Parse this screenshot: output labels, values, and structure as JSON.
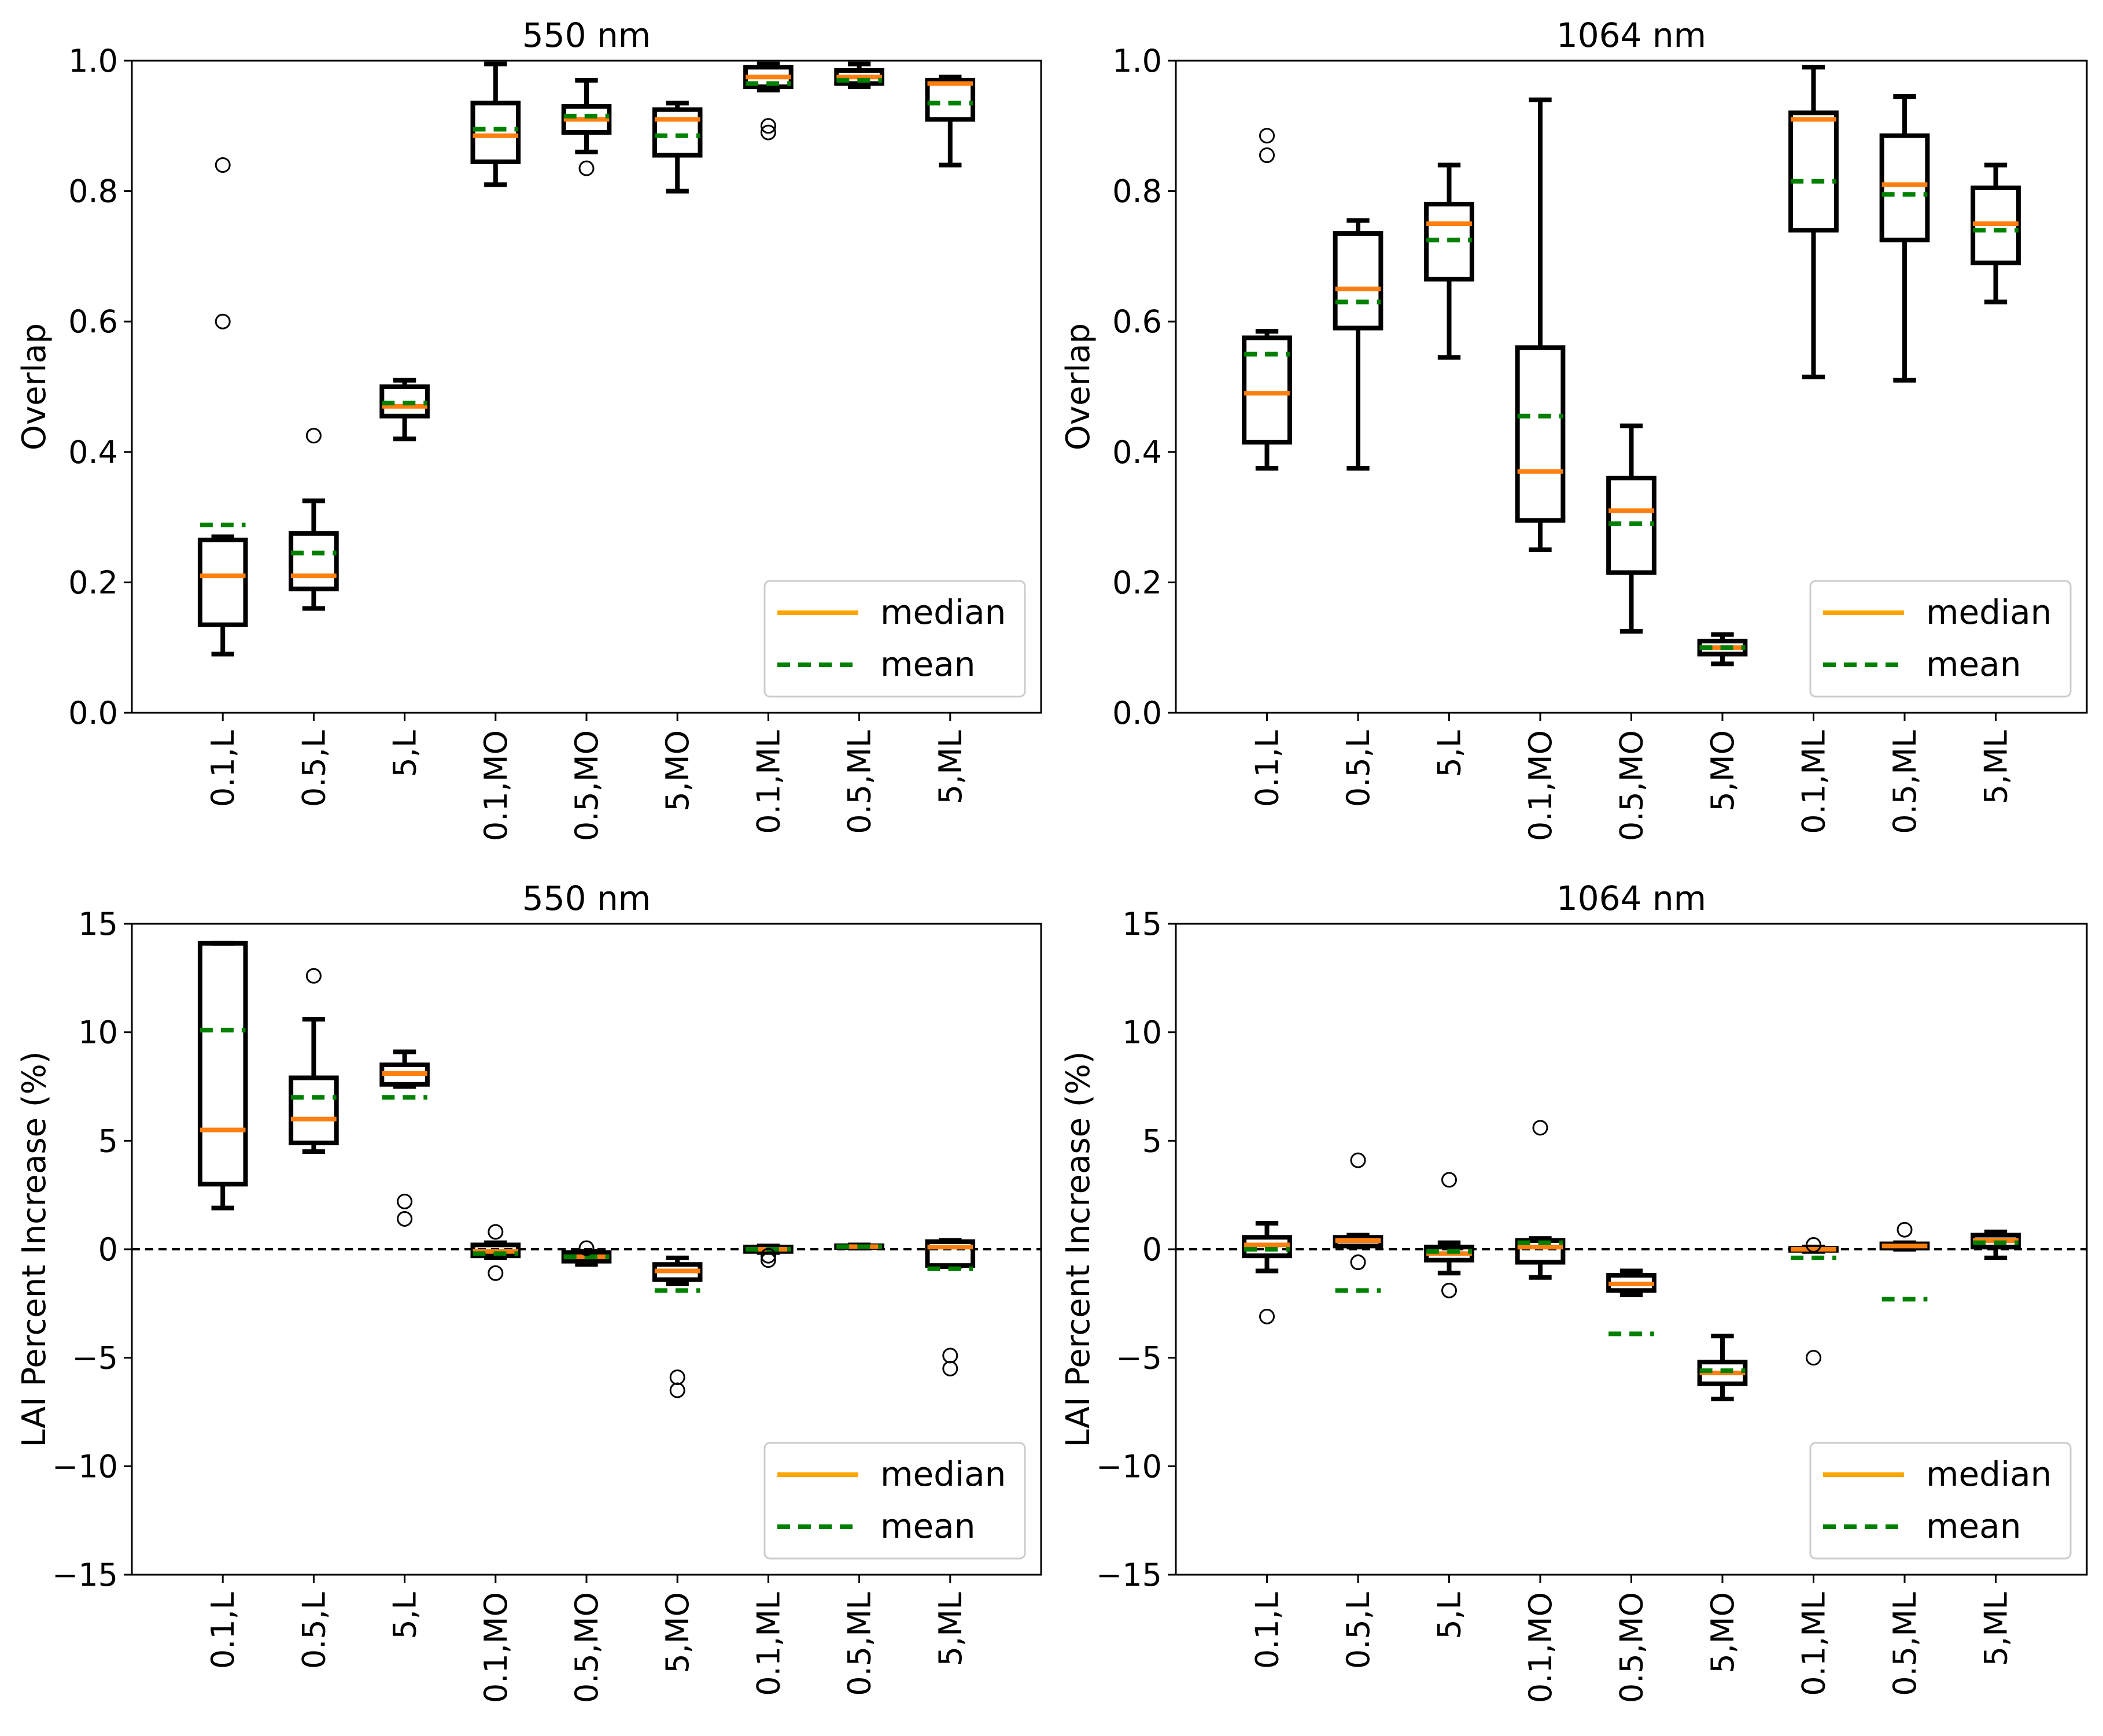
{
  "legend": {
    "median_label": "median",
    "mean_label": "mean"
  },
  "colors": {
    "box": "#000000",
    "median": "#ff7f0e",
    "mean": "#008000",
    "legend_median": "#ffa500",
    "zero_line": "#000000"
  },
  "chart_data": [
    {
      "type": "box",
      "title": "550 nm",
      "xlabel": "",
      "ylabel": "Overlap",
      "ylim": [
        0.0,
        1.0
      ],
      "yticks": [
        "0.0",
        "0.2",
        "0.4",
        "0.6",
        "0.8",
        "1.0"
      ],
      "ytick_values": [
        0.0,
        0.2,
        0.4,
        0.6,
        0.8,
        1.0
      ],
      "zero_line": false,
      "legend_position": "lower-right",
      "categories": [
        "0.1,L",
        "0.5,L",
        "5,L",
        "0.1,MO",
        "0.5,MO",
        "5,MO",
        "0.1,ML",
        "0.5,ML",
        "5,ML"
      ],
      "boxes": [
        {
          "whislo": 0.09,
          "q1": 0.135,
          "med": 0.21,
          "q3": 0.265,
          "whishi": 0.27,
          "mean": 0.288,
          "fliers": [
            0.6,
            0.84
          ]
        },
        {
          "whislo": 0.16,
          "q1": 0.19,
          "med": 0.21,
          "q3": 0.275,
          "whishi": 0.325,
          "mean": 0.245,
          "fliers": [
            0.425
          ]
        },
        {
          "whislo": 0.42,
          "q1": 0.455,
          "med": 0.47,
          "q3": 0.5,
          "whishi": 0.51,
          "mean": 0.475,
          "fliers": []
        },
        {
          "whislo": 0.81,
          "q1": 0.845,
          "med": 0.885,
          "q3": 0.935,
          "whishi": 0.995,
          "mean": 0.895,
          "fliers": []
        },
        {
          "whislo": 0.86,
          "q1": 0.89,
          "med": 0.91,
          "q3": 0.93,
          "whishi": 0.97,
          "mean": 0.915,
          "fliers": [
            0.835
          ]
        },
        {
          "whislo": 0.8,
          "q1": 0.855,
          "med": 0.91,
          "q3": 0.925,
          "whishi": 0.935,
          "mean": 0.885,
          "fliers": []
        },
        {
          "whislo": 0.955,
          "q1": 0.96,
          "med": 0.975,
          "q3": 0.99,
          "whishi": 0.995,
          "mean": 0.965,
          "fliers": [
            0.89,
            0.9
          ]
        },
        {
          "whislo": 0.96,
          "q1": 0.965,
          "med": 0.975,
          "q3": 0.985,
          "whishi": 0.995,
          "mean": 0.97,
          "fliers": []
        },
        {
          "whislo": 0.84,
          "q1": 0.91,
          "med": 0.965,
          "q3": 0.97,
          "whishi": 0.975,
          "mean": 0.935,
          "fliers": []
        }
      ]
    },
    {
      "type": "box",
      "title": "1064 nm",
      "xlabel": "",
      "ylabel": "Overlap",
      "ylim": [
        0.0,
        1.0
      ],
      "yticks": [
        "0.0",
        "0.2",
        "0.4",
        "0.6",
        "0.8",
        "1.0"
      ],
      "ytick_values": [
        0.0,
        0.2,
        0.4,
        0.6,
        0.8,
        1.0
      ],
      "zero_line": false,
      "legend_position": "lower-right",
      "categories": [
        "0.1,L",
        "0.5,L",
        "5,L",
        "0.1,MO",
        "0.5,MO",
        "5,MO",
        "0.1,ML",
        "0.5,ML",
        "5,ML"
      ],
      "boxes": [
        {
          "whislo": 0.375,
          "q1": 0.415,
          "med": 0.49,
          "q3": 0.575,
          "whishi": 0.585,
          "mean": 0.55,
          "fliers": [
            0.855,
            0.885
          ]
        },
        {
          "whislo": 0.375,
          "q1": 0.59,
          "med": 0.65,
          "q3": 0.735,
          "whishi": 0.755,
          "mean": 0.63,
          "fliers": []
        },
        {
          "whislo": 0.545,
          "q1": 0.665,
          "med": 0.75,
          "q3": 0.78,
          "whishi": 0.84,
          "mean": 0.725,
          "fliers": []
        },
        {
          "whislo": 0.25,
          "q1": 0.295,
          "med": 0.37,
          "q3": 0.56,
          "whishi": 0.94,
          "mean": 0.455,
          "fliers": []
        },
        {
          "whislo": 0.125,
          "q1": 0.215,
          "med": 0.31,
          "q3": 0.36,
          "whishi": 0.44,
          "mean": 0.29,
          "fliers": []
        },
        {
          "whislo": 0.075,
          "q1": 0.09,
          "med": 0.1,
          "q3": 0.11,
          "whishi": 0.12,
          "mean": 0.1,
          "fliers": []
        },
        {
          "whislo": 0.515,
          "q1": 0.74,
          "med": 0.91,
          "q3": 0.92,
          "whishi": 0.99,
          "mean": 0.815,
          "fliers": []
        },
        {
          "whislo": 0.51,
          "q1": 0.725,
          "med": 0.81,
          "q3": 0.885,
          "whishi": 0.945,
          "mean": 0.795,
          "fliers": []
        },
        {
          "whislo": 0.63,
          "q1": 0.69,
          "med": 0.75,
          "q3": 0.805,
          "whishi": 0.84,
          "mean": 0.74,
          "fliers": []
        }
      ]
    },
    {
      "type": "box",
      "title": "550 nm",
      "xlabel": "",
      "ylabel": "LAI Percent Increase (%)",
      "ylim": [
        -15,
        15
      ],
      "yticks": [
        "−15",
        "−10",
        "−5",
        "0",
        "5",
        "10",
        "15"
      ],
      "ytick_values": [
        -15,
        -10,
        -5,
        0,
        5,
        10,
        15
      ],
      "zero_line": true,
      "legend_position": "lower-right",
      "categories": [
        "0.1,L",
        "0.5,L",
        "5,L",
        "0.1,MO",
        "0.5,MO",
        "5,MO",
        "0.1,ML",
        "0.5,ML",
        "5,ML"
      ],
      "boxes": [
        {
          "whislo": 1.9,
          "q1": 3.0,
          "med": 5.5,
          "q3": 14.1,
          "whishi": 14.1,
          "mean": 10.1,
          "fliers": []
        },
        {
          "whislo": 4.5,
          "q1": 4.9,
          "med": 6.0,
          "q3": 7.9,
          "whishi": 10.6,
          "mean": 7.0,
          "fliers": [
            12.6
          ]
        },
        {
          "whislo": 7.5,
          "q1": 7.6,
          "med": 8.1,
          "q3": 8.5,
          "whishi": 9.1,
          "mean": 7.0,
          "fliers": [
            1.4,
            2.2
          ]
        },
        {
          "whislo": -0.4,
          "q1": -0.3,
          "med": -0.1,
          "q3": 0.2,
          "whishi": 0.3,
          "mean": -0.2,
          "fliers": [
            -1.1,
            0.8
          ]
        },
        {
          "whislo": -0.7,
          "q1": -0.55,
          "med": -0.35,
          "q3": -0.15,
          "whishi": -0.1,
          "mean": -0.35,
          "fliers": [
            0.05
          ]
        },
        {
          "whislo": -1.6,
          "q1": -1.4,
          "med": -1.0,
          "q3": -0.7,
          "whishi": -0.4,
          "mean": -1.9,
          "fliers": [
            -6.5,
            -5.9
          ]
        },
        {
          "whislo": -0.15,
          "q1": -0.1,
          "med": 0.0,
          "q3": 0.1,
          "whishi": 0.15,
          "mean": 0.0,
          "fliers": [
            -0.5,
            -0.3
          ]
        },
        {
          "whislo": 0.05,
          "q1": 0.08,
          "med": 0.12,
          "q3": 0.16,
          "whishi": 0.2,
          "mean": 0.12,
          "fliers": []
        },
        {
          "whislo": -0.8,
          "q1": -0.75,
          "med": 0.1,
          "q3": 0.35,
          "whishi": 0.4,
          "mean": -0.9,
          "fliers": [
            -5.5,
            -4.9
          ]
        }
      ]
    },
    {
      "type": "box",
      "title": "1064 nm",
      "xlabel": "",
      "ylabel": "LAI Percent Increase (%)",
      "ylim": [
        -15,
        15
      ],
      "yticks": [
        "−15",
        "−10",
        "−5",
        "0",
        "5",
        "10",
        "15"
      ],
      "ytick_values": [
        -15,
        -10,
        -5,
        0,
        5,
        10,
        15
      ],
      "zero_line": true,
      "legend_position": "lower-right",
      "categories": [
        "0.1,L",
        "0.5,L",
        "5,L",
        "0.1,MO",
        "0.5,MO",
        "5,MO",
        "0.1,ML",
        "0.5,ML",
        "5,ML"
      ],
      "boxes": [
        {
          "whislo": -1.0,
          "q1": -0.3,
          "med": 0.2,
          "q3": 0.55,
          "whishi": 1.2,
          "mean": 0.0,
          "fliers": [
            -3.1
          ]
        },
        {
          "whislo": 0.1,
          "q1": 0.15,
          "med": 0.4,
          "q3": 0.55,
          "whishi": 0.65,
          "mean": -1.9,
          "fliers": [
            -0.6,
            4.1
          ]
        },
        {
          "whislo": -1.1,
          "q1": -0.5,
          "med": -0.2,
          "q3": 0.1,
          "whishi": 0.3,
          "mean": -0.1,
          "fliers": [
            -1.9,
            3.2
          ]
        },
        {
          "whislo": -1.3,
          "q1": -0.6,
          "med": 0.1,
          "q3": 0.4,
          "whishi": 0.5,
          "mean": 0.3,
          "fliers": [
            5.6
          ]
        },
        {
          "whislo": -2.1,
          "q1": -1.9,
          "med": -1.6,
          "q3": -1.2,
          "whishi": -1.0,
          "mean": -3.9,
          "fliers": []
        },
        {
          "whislo": -6.9,
          "q1": -6.2,
          "med": -5.7,
          "q3": -5.2,
          "whishi": -4.0,
          "mean": -5.6,
          "fliers": []
        },
        {
          "whislo": -0.1,
          "q1": -0.05,
          "med": 0.0,
          "q3": 0.05,
          "whishi": 0.1,
          "mean": -0.4,
          "fliers": [
            -5.0,
            0.2
          ]
        },
        {
          "whislo": 0.0,
          "q1": 0.05,
          "med": 0.15,
          "q3": 0.25,
          "whishi": 0.3,
          "mean": -2.3,
          "fliers": [
            0.9
          ]
        },
        {
          "whislo": -0.4,
          "q1": 0.1,
          "med": 0.4,
          "q3": 0.65,
          "whishi": 0.8,
          "mean": 0.3,
          "fliers": []
        }
      ]
    }
  ]
}
